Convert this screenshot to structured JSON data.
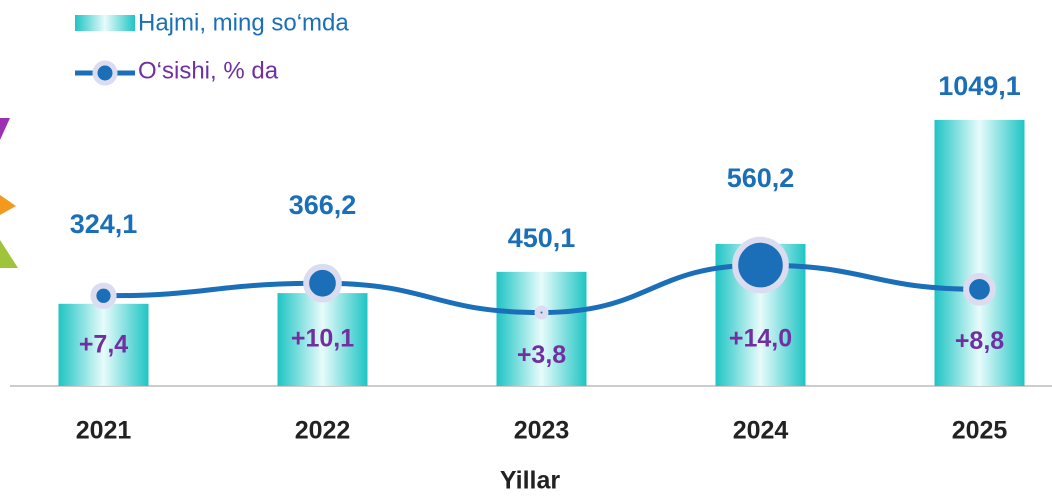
{
  "chart_data": {
    "type": "bar-line",
    "x_label": "Yillar",
    "categories": [
      "2021",
      "2022",
      "2023",
      "2024",
      "2025"
    ],
    "series": [
      {
        "name": "Hajmi, ming so‘mda",
        "color": "#33cccc",
        "values": [
          324.1,
          366.2,
          450.1,
          560.2,
          1049.1
        ],
        "value_labels": [
          "324,1",
          "366,2",
          "450,1",
          "560,2",
          "1049,1"
        ]
      },
      {
        "name": "O‘sishi, % da",
        "color": "#1a6fb8",
        "axis": "y2",
        "values": [
          7.4,
          10.1,
          3.8,
          14.0,
          8.8
        ],
        "value_labels": [
          "+7,4",
          "+10,1",
          "+3,8",
          "+14,0",
          "+8,8"
        ]
      }
    ],
    "ylim": [
      0,
      1100
    ],
    "y2lim": [
      -12,
      48
    ]
  }
}
